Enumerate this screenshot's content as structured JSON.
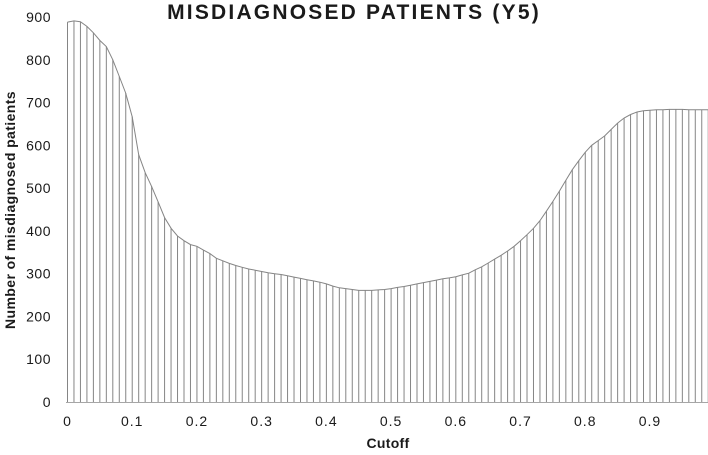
{
  "page": {
    "background": "#ffffff"
  },
  "chart_data": {
    "type": "line",
    "variant": "envelope line with vertical drop-lines at every x point (histogram-like spikes, white fill)",
    "title": "MISDIAGNOSED PATIENTS (Y5)",
    "xlabel": "Cutoff",
    "ylabel": "Number of misdiagnosed patients",
    "xlim": [
      0,
      0.99
    ],
    "ylim": [
      0,
      900
    ],
    "grid": false,
    "legend": null,
    "x_tick_labels": [
      "0",
      "0.1",
      "0.2",
      "0.3",
      "0.4",
      "0.5",
      "0.6",
      "0.7",
      "0.8",
      "0.9"
    ],
    "x_tick_values": [
      0,
      0.1,
      0.2,
      0.3,
      0.4,
      0.5,
      0.6,
      0.7,
      0.8,
      0.9
    ],
    "y_tick_labels": [
      "0",
      "100",
      "200",
      "300",
      "400",
      "500",
      "600",
      "700",
      "800",
      "900"
    ],
    "y_tick_values": [
      0,
      100,
      200,
      300,
      400,
      500,
      600,
      700,
      800,
      900
    ],
    "x": [
      0.0,
      0.01,
      0.02,
      0.03,
      0.04,
      0.05,
      0.06,
      0.07,
      0.08,
      0.09,
      0.1,
      0.11,
      0.12,
      0.13,
      0.14,
      0.15,
      0.16,
      0.17,
      0.18,
      0.19,
      0.2,
      0.21,
      0.22,
      0.23,
      0.24,
      0.25,
      0.26,
      0.27,
      0.28,
      0.29,
      0.3,
      0.31,
      0.32,
      0.33,
      0.34,
      0.35,
      0.36,
      0.37,
      0.38,
      0.39,
      0.4,
      0.41,
      0.42,
      0.43,
      0.44,
      0.45,
      0.46,
      0.47,
      0.48,
      0.49,
      0.5,
      0.51,
      0.52,
      0.53,
      0.54,
      0.55,
      0.56,
      0.57,
      0.58,
      0.59,
      0.6,
      0.61,
      0.62,
      0.63,
      0.64,
      0.65,
      0.66,
      0.67,
      0.68,
      0.69,
      0.7,
      0.71,
      0.72,
      0.73,
      0.74,
      0.75,
      0.76,
      0.77,
      0.78,
      0.79,
      0.8,
      0.81,
      0.82,
      0.83,
      0.84,
      0.85,
      0.86,
      0.87,
      0.88,
      0.89,
      0.9,
      0.91,
      0.92,
      0.93,
      0.94,
      0.95,
      0.96,
      0.97,
      0.98,
      0.99
    ],
    "values": [
      888,
      891,
      889,
      878,
      863,
      845,
      831,
      800,
      761,
      722,
      667,
      578,
      536,
      504,
      468,
      431,
      406,
      388,
      377,
      368,
      364,
      355,
      347,
      336,
      330,
      324,
      319,
      315,
      311,
      308,
      305,
      302,
      300,
      298,
      295,
      292,
      289,
      286,
      283,
      280,
      276,
      271,
      267,
      265,
      263,
      261,
      261,
      261,
      262,
      263,
      265,
      268,
      270,
      273,
      276,
      279,
      282,
      285,
      288,
      290,
      293,
      297,
      301,
      309,
      316,
      325,
      334,
      343,
      353,
      364,
      377,
      391,
      406,
      424,
      446,
      469,
      493,
      518,
      543,
      564,
      584,
      600,
      611,
      622,
      637,
      652,
      664,
      672,
      678,
      681,
      682,
      683,
      683,
      684,
      684,
      684,
      683,
      683,
      683,
      683
    ],
    "colors": {
      "line": "#858585",
      "axis": "#a6a6a6",
      "text": "#1a1a1a",
      "fill": "#ffffff"
    }
  }
}
